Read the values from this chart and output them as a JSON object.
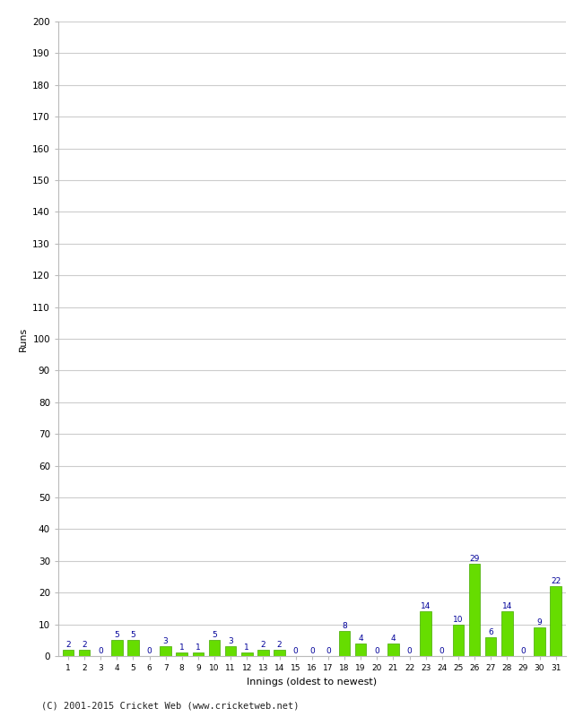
{
  "innings": [
    1,
    2,
    3,
    4,
    5,
    6,
    7,
    8,
    9,
    10,
    11,
    12,
    13,
    14,
    15,
    16,
    17,
    18,
    19,
    20,
    21,
    22,
    23,
    24,
    25,
    26,
    27,
    28,
    29,
    30,
    31
  ],
  "runs": [
    2,
    2,
    0,
    5,
    5,
    0,
    3,
    1,
    1,
    5,
    3,
    1,
    2,
    2,
    0,
    0,
    0,
    8,
    4,
    0,
    4,
    0,
    14,
    0,
    10,
    29,
    6,
    14,
    0,
    9,
    22
  ],
  "bar_color": "#66dd00",
  "bar_edge_color": "#44aa00",
  "label_color": "#000099",
  "xlabel": "Innings (oldest to newest)",
  "ylabel": "Runs",
  "ylim": [
    0,
    200
  ],
  "ytick_step": 10,
  "background_color": "#ffffff",
  "grid_color": "#cccccc",
  "footer": "(C) 2001-2015 Cricket Web (www.cricketweb.net)"
}
